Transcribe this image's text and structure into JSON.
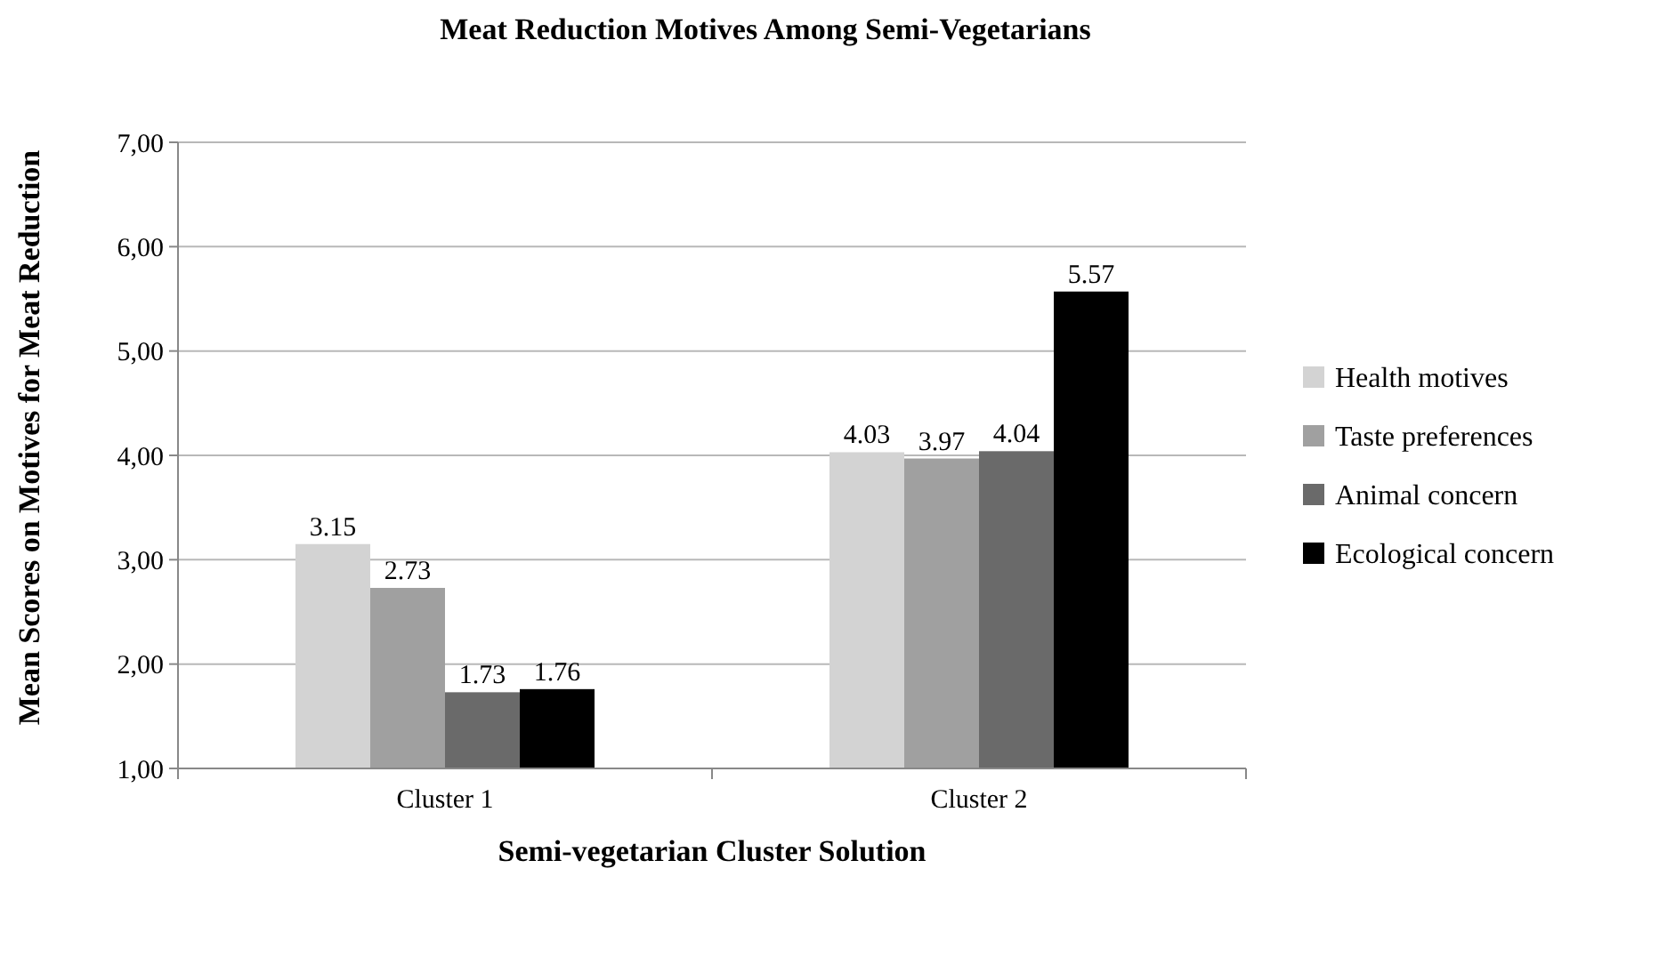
{
  "chart_data": {
    "type": "bar",
    "title": "Meat Reduction Motives Among Semi-Vegetarians",
    "xlabel": "Semi-vegetarian Cluster Solution",
    "ylabel": "Mean Scores on Motives for Meat Reduction",
    "categories": [
      "Cluster 1",
      "Cluster 2"
    ],
    "series": [
      {
        "name": "Health motives",
        "color": "#d3d3d3",
        "values": [
          3.15,
          4.03
        ]
      },
      {
        "name": "Taste preferences",
        "color": "#a0a0a0",
        "values": [
          2.73,
          3.97
        ]
      },
      {
        "name": "Animal concern",
        "color": "#6a6a6a",
        "values": [
          1.73,
          4.04
        ]
      },
      {
        "name": "Ecological concern",
        "color": "#000000",
        "values": [
          1.76,
          5.57
        ]
      }
    ],
    "ylim": [
      1,
      7
    ],
    "yticks": [
      {
        "value": 1,
        "label": "1,00"
      },
      {
        "value": 2,
        "label": "2,00"
      },
      {
        "value": 3,
        "label": "3,00"
      },
      {
        "value": 4,
        "label": "4,00"
      },
      {
        "value": 5,
        "label": "5,00"
      },
      {
        "value": 6,
        "label": "6,00"
      },
      {
        "value": 7,
        "label": "7,00"
      }
    ],
    "grid": "y",
    "legend": "right",
    "data_labels": true
  }
}
